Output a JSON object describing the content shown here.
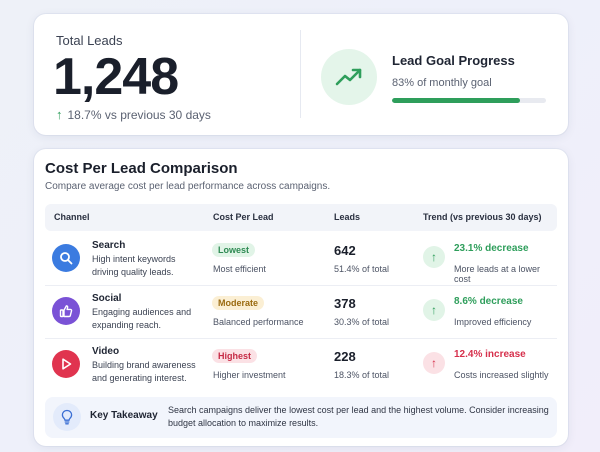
{
  "total_leads": {
    "label": "Total Leads",
    "value": "1,248",
    "trend_arrow": "↑",
    "trend_text": "18.7% vs previous 30 days",
    "trend_color": "#2e9e5b"
  },
  "goal": {
    "icon": "trend-up-icon",
    "title": "Lead Goal Progress",
    "subtitle": "83% of monthly goal",
    "progress": 0.83,
    "bar_color": "#2e9e5b"
  },
  "comparison": {
    "title": "Cost Per Lead Comparison",
    "subtitle": "Compare average cost per lead performance across campaigns.",
    "columns": [
      "Channel",
      "Cost Per Lead",
      "Leads",
      "Trend (vs previous 30 days)"
    ],
    "rows": [
      {
        "icon": "search-icon",
        "icon_bg": "#3b7be0",
        "name": "Search",
        "description": "High intent keywords driving quality leads.",
        "badge": "Lowest",
        "badge_bg": "#e1f4e7",
        "badge_color": "#2e8a53",
        "cpl_note": "Most efficient",
        "leads": "642",
        "leads_pct": "51.4% of total",
        "trend_arrow": "↑",
        "trend_main": "23.1% decrease",
        "trend_note": "More leads at a lower cost",
        "trend_color": "#2e9e5b",
        "trend_bg": "#e1f4e7"
      },
      {
        "icon": "thumbs-up-icon",
        "icon_bg": "#7a52d6",
        "name": "Social",
        "description": "Engaging audiences and expanding reach.",
        "badge": "Moderate",
        "badge_bg": "#fbefd4",
        "badge_color": "#9a6a10",
        "cpl_note": "Balanced performance",
        "leads": "378",
        "leads_pct": "30.3% of total",
        "trend_arrow": "↑",
        "trend_main": "8.6% decrease",
        "trend_note": "Improved efficiency",
        "trend_color": "#2e9e5b",
        "trend_bg": "#e1f4e7"
      },
      {
        "icon": "play-icon",
        "icon_bg": "#e0344f",
        "name": "Video",
        "description": "Building brand awareness and generating interest.",
        "badge": "Highest",
        "badge_bg": "#fbe1e5",
        "badge_color": "#c62a45",
        "cpl_note": "Higher investment",
        "leads": "228",
        "leads_pct": "18.3% of total",
        "trend_arrow": "↑",
        "trend_main": "12.4% increase",
        "trend_note": "Costs increased slightly",
        "trend_color": "#d6304c",
        "trend_bg": "#fbe1e5"
      }
    ]
  },
  "takeaway": {
    "icon": "lightbulb-icon",
    "label": "Key Takeaway",
    "text": "Search campaigns deliver the lowest cost per lead and the highest volume. Consider increasing budget allocation to maximize results."
  }
}
